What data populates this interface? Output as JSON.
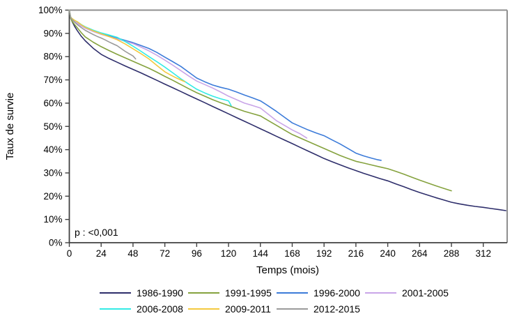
{
  "chart_data": {
    "type": "line",
    "title": "",
    "xlabel": "Temps (mois)",
    "ylabel": "Taux de survie",
    "annotation": "p : <0,001",
    "x_ticks": [
      0,
      24,
      48,
      72,
      96,
      120,
      144,
      168,
      192,
      216,
      240,
      264,
      288,
      312
    ],
    "y_ticks_percent": [
      0,
      10,
      20,
      30,
      40,
      50,
      60,
      70,
      80,
      90,
      100
    ],
    "y_tick_suffix": "%",
    "xlim": [
      0,
      330
    ],
    "ylim": [
      0,
      100
    ],
    "grid": false,
    "legend_position": "bottom",
    "legend_rows": [
      [
        "1986-1990",
        "1991-1995",
        "1996-2000",
        "2001-2005"
      ],
      [
        "2006-2008",
        "2009-2011",
        "2012-2015"
      ]
    ],
    "series": [
      {
        "name": "1986-1990",
        "color": "#2E2E6B",
        "points": [
          [
            0,
            100
          ],
          [
            1,
            97
          ],
          [
            2,
            95.2
          ],
          [
            4,
            93
          ],
          [
            6,
            91.2
          ],
          [
            9,
            88.8
          ],
          [
            12,
            86.8
          ],
          [
            18,
            83.6
          ],
          [
            24,
            81
          ],
          [
            30,
            79.2
          ],
          [
            36,
            77.6
          ],
          [
            42,
            76
          ],
          [
            48,
            74.5
          ],
          [
            54,
            73
          ],
          [
            60,
            71.4
          ],
          [
            66,
            69.8
          ],
          [
            72,
            68.2
          ],
          [
            78,
            66.6
          ],
          [
            84,
            65
          ],
          [
            90,
            63.4
          ],
          [
            96,
            61.8
          ],
          [
            102,
            60.2
          ],
          [
            108,
            58.6
          ],
          [
            114,
            57
          ],
          [
            120,
            55.4
          ],
          [
            126,
            53.8
          ],
          [
            132,
            52.2
          ],
          [
            138,
            50.6
          ],
          [
            144,
            49
          ],
          [
            150,
            47.4
          ],
          [
            156,
            45.8
          ],
          [
            162,
            44.2
          ],
          [
            168,
            42.6
          ],
          [
            174,
            41
          ],
          [
            180,
            39.4
          ],
          [
            186,
            37.8
          ],
          [
            192,
            36.2
          ],
          [
            198,
            34.8
          ],
          [
            204,
            33.5
          ],
          [
            210,
            32.2
          ],
          [
            216,
            31
          ],
          [
            222,
            29.8
          ],
          [
            228,
            28.7
          ],
          [
            234,
            27.6
          ],
          [
            240,
            26.6
          ],
          [
            246,
            25.3
          ],
          [
            252,
            24.1
          ],
          [
            258,
            22.8
          ],
          [
            264,
            21.6
          ],
          [
            270,
            20.5
          ],
          [
            276,
            19.4
          ],
          [
            282,
            18.4
          ],
          [
            288,
            17.4
          ],
          [
            294,
            16.7
          ],
          [
            300,
            16.1
          ],
          [
            306,
            15.6
          ],
          [
            312,
            15.2
          ],
          [
            318,
            14.7
          ],
          [
            324,
            14.2
          ],
          [
            329,
            13.8
          ]
        ]
      },
      {
        "name": "1991-1995",
        "color": "#85A23E",
        "points": [
          [
            0,
            100
          ],
          [
            1,
            96.5
          ],
          [
            2,
            95.3
          ],
          [
            4,
            93.8
          ],
          [
            6,
            92.4
          ],
          [
            9,
            90.3
          ],
          [
            12,
            88.5
          ],
          [
            18,
            86.2
          ],
          [
            24,
            84.3
          ],
          [
            30,
            82.6
          ],
          [
            36,
            81
          ],
          [
            42,
            79.5
          ],
          [
            48,
            78
          ],
          [
            54,
            76.5
          ],
          [
            60,
            75
          ],
          [
            66,
            73.3
          ],
          [
            72,
            71.5
          ],
          [
            78,
            69.8
          ],
          [
            84,
            68
          ],
          [
            90,
            66.2
          ],
          [
            96,
            64.5
          ],
          [
            102,
            63
          ],
          [
            108,
            61.5
          ],
          [
            114,
            60.2
          ],
          [
            120,
            59
          ],
          [
            126,
            57.7
          ],
          [
            132,
            56.5
          ],
          [
            138,
            55.5
          ],
          [
            144,
            54.5
          ],
          [
            150,
            52.5
          ],
          [
            156,
            50.5
          ],
          [
            162,
            48.5
          ],
          [
            168,
            46.5
          ],
          [
            174,
            45
          ],
          [
            180,
            43.5
          ],
          [
            186,
            42
          ],
          [
            192,
            40.5
          ],
          [
            198,
            39
          ],
          [
            204,
            37.5
          ],
          [
            210,
            36.2
          ],
          [
            216,
            35
          ],
          [
            222,
            34.2
          ],
          [
            228,
            33.4
          ],
          [
            234,
            32.6
          ],
          [
            240,
            31.8
          ],
          [
            246,
            30.7
          ],
          [
            252,
            29.5
          ],
          [
            258,
            28.2
          ],
          [
            264,
            26.9
          ],
          [
            270,
            25.7
          ],
          [
            276,
            24.5
          ],
          [
            282,
            23.4
          ],
          [
            288,
            22.3
          ]
        ]
      },
      {
        "name": "1996-2000",
        "color": "#3C7BD9",
        "points": [
          [
            0,
            100
          ],
          [
            1,
            97
          ],
          [
            2,
            96.3
          ],
          [
            4,
            95.2
          ],
          [
            6,
            94.4
          ],
          [
            9,
            93.4
          ],
          [
            12,
            92.5
          ],
          [
            18,
            91.2
          ],
          [
            24,
            90
          ],
          [
            30,
            89
          ],
          [
            36,
            88
          ],
          [
            42,
            87
          ],
          [
            48,
            86
          ],
          [
            54,
            84.8
          ],
          [
            60,
            83.5
          ],
          [
            66,
            81.8
          ],
          [
            72,
            79.8
          ],
          [
            78,
            77.8
          ],
          [
            84,
            75.8
          ],
          [
            90,
            73.3
          ],
          [
            96,
            70.8
          ],
          [
            102,
            69.2
          ],
          [
            108,
            67.8
          ],
          [
            114,
            66.8
          ],
          [
            120,
            66
          ],
          [
            126,
            64.8
          ],
          [
            132,
            63.5
          ],
          [
            138,
            62.3
          ],
          [
            144,
            61
          ],
          [
            150,
            58.8
          ],
          [
            156,
            56.5
          ],
          [
            162,
            54
          ],
          [
            168,
            51.5
          ],
          [
            174,
            50
          ],
          [
            180,
            48.5
          ],
          [
            186,
            47.2
          ],
          [
            192,
            46
          ],
          [
            198,
            44.2
          ],
          [
            204,
            42.5
          ],
          [
            210,
            40.5
          ],
          [
            216,
            38.5
          ],
          [
            222,
            37.3
          ],
          [
            228,
            36.3
          ],
          [
            232,
            35.7
          ],
          [
            235,
            35.4
          ]
        ]
      },
      {
        "name": "2001-2005",
        "color": "#C9A5E8",
        "points": [
          [
            0,
            100
          ],
          [
            1,
            96.8
          ],
          [
            2,
            96.2
          ],
          [
            4,
            95.2
          ],
          [
            6,
            94.4
          ],
          [
            9,
            93.2
          ],
          [
            12,
            92.2
          ],
          [
            18,
            90.8
          ],
          [
            24,
            89.6
          ],
          [
            30,
            88.6
          ],
          [
            36,
            87.6
          ],
          [
            42,
            86.6
          ],
          [
            48,
            85.6
          ],
          [
            54,
            84.1
          ],
          [
            60,
            82.5
          ],
          [
            66,
            80.6
          ],
          [
            72,
            78.5
          ],
          [
            78,
            76.3
          ],
          [
            84,
            74
          ],
          [
            90,
            71.7
          ],
          [
            96,
            69.5
          ],
          [
            102,
            68
          ],
          [
            108,
            66.5
          ],
          [
            114,
            64.8
          ],
          [
            120,
            63
          ],
          [
            126,
            61.5
          ],
          [
            132,
            60
          ],
          [
            138,
            59
          ],
          [
            144,
            57.9
          ],
          [
            150,
            55.2
          ],
          [
            156,
            52.5
          ],
          [
            162,
            50.5
          ],
          [
            168,
            48.5
          ],
          [
            174,
            46.8
          ],
          [
            179,
            45
          ]
        ]
      },
      {
        "name": "2006-2008",
        "color": "#33EBE5",
        "points": [
          [
            0,
            100
          ],
          [
            1,
            97
          ],
          [
            2,
            96.4
          ],
          [
            4,
            95.6
          ],
          [
            6,
            95
          ],
          [
            9,
            93.8
          ],
          [
            12,
            92.8
          ],
          [
            18,
            91.4
          ],
          [
            24,
            90.2
          ],
          [
            30,
            89.3
          ],
          [
            36,
            88.3
          ],
          [
            42,
            86.5
          ],
          [
            48,
            84.5
          ],
          [
            54,
            82.3
          ],
          [
            60,
            80
          ],
          [
            66,
            77.8
          ],
          [
            72,
            75.5
          ],
          [
            78,
            73
          ],
          [
            84,
            70.5
          ],
          [
            90,
            68.2
          ],
          [
            96,
            66
          ],
          [
            102,
            64.4
          ],
          [
            108,
            63
          ],
          [
            114,
            61.9
          ],
          [
            120,
            61
          ],
          [
            121,
            60
          ],
          [
            122,
            58.9
          ]
        ]
      },
      {
        "name": "2009-2011",
        "color": "#F3C93F",
        "points": [
          [
            0,
            100
          ],
          [
            1,
            97
          ],
          [
            2,
            96.4
          ],
          [
            4,
            95.6
          ],
          [
            6,
            95
          ],
          [
            9,
            93.7
          ],
          [
            12,
            92.6
          ],
          [
            18,
            91.1
          ],
          [
            24,
            89.8
          ],
          [
            30,
            88.6
          ],
          [
            36,
            87.3
          ],
          [
            42,
            85.5
          ],
          [
            48,
            83.4
          ],
          [
            54,
            81.3
          ],
          [
            60,
            79
          ],
          [
            66,
            76.2
          ],
          [
            72,
            73.5
          ],
          [
            76,
            72.2
          ],
          [
            80,
            71
          ],
          [
            84,
            70
          ],
          [
            87,
            69.2
          ]
        ]
      },
      {
        "name": "2012-2015",
        "color": "#9A9A9A",
        "points": [
          [
            0,
            100
          ],
          [
            1,
            96.8
          ],
          [
            2,
            96
          ],
          [
            4,
            94.8
          ],
          [
            6,
            93.8
          ],
          [
            9,
            92.5
          ],
          [
            12,
            91.3
          ],
          [
            15,
            90.4
          ],
          [
            18,
            89.5
          ],
          [
            21,
            88.7
          ],
          [
            24,
            88
          ],
          [
            27,
            87.2
          ],
          [
            30,
            86.3
          ],
          [
            33,
            85.5
          ],
          [
            36,
            84.7
          ],
          [
            39,
            83.5
          ],
          [
            42,
            82.3
          ],
          [
            45,
            81.3
          ],
          [
            48,
            80.3
          ],
          [
            50,
            79
          ]
        ]
      }
    ]
  }
}
